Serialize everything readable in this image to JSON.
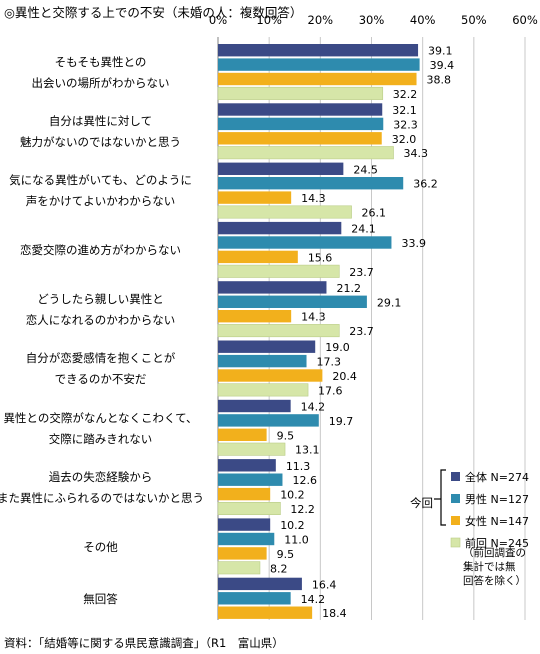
{
  "chart_data": {
    "type": "bar",
    "orientation": "horizontal",
    "title": "◎異性と交際する上での不安（未婚の人：複数回答）",
    "source": "資料：「結婚等に関する県民意識調査」（R1　富山県）",
    "xlim": [
      0,
      60
    ],
    "x_ticks": [
      "0%",
      "10%",
      "20%",
      "30%",
      "40%",
      "50%",
      "60%"
    ],
    "grid": "vertical",
    "categories": [
      [
        "そもそも異性との",
        "出会いの場所がわからない"
      ],
      [
        "自分は異性に対して",
        "魅力がないのではないかと思う"
      ],
      [
        "気になる異性がいても、どのように",
        "声をかけてよいかわからない"
      ],
      [
        "恋愛交際の進め方がわからない"
      ],
      [
        "どうしたら親しい異性と",
        "恋人になれるのかわからない"
      ],
      [
        "自分が恋愛感情を抱くことが",
        "できるのか不安だ"
      ],
      [
        "異性との交際がなんとなくこわくて、",
        "交際に踏みきれない"
      ],
      [
        "過去の失恋経験から",
        "また異性にふられるのではないかと思う"
      ],
      [
        "その他"
      ],
      [
        "無回答"
      ]
    ],
    "series": [
      {
        "name": "全体 N=274",
        "color": "#3b4a86",
        "values": [
          39.1,
          32.1,
          24.5,
          24.1,
          21.2,
          19.0,
          14.2,
          11.3,
          10.2,
          16.4
        ]
      },
      {
        "name": "男性 N=127",
        "color": "#2e8bae",
        "values": [
          39.4,
          32.3,
          36.2,
          33.9,
          29.1,
          17.3,
          19.7,
          12.6,
          11.0,
          14.2
        ]
      },
      {
        "name": "女性 N=147",
        "color": "#f2b01c",
        "values": [
          38.8,
          32.0,
          14.3,
          15.6,
          14.3,
          20.4,
          9.5,
          10.2,
          9.5,
          18.4
        ]
      },
      {
        "name": "前回 N=245",
        "color": "#d6e6a8",
        "values": [
          32.2,
          34.3,
          26.1,
          23.7,
          23.7,
          17.6,
          13.1,
          12.2,
          8.2,
          null
        ]
      }
    ],
    "legend": {
      "position": "right",
      "group_label": "今回",
      "note": "（前回調査の\n集計では無\n回答を除く）"
    }
  }
}
